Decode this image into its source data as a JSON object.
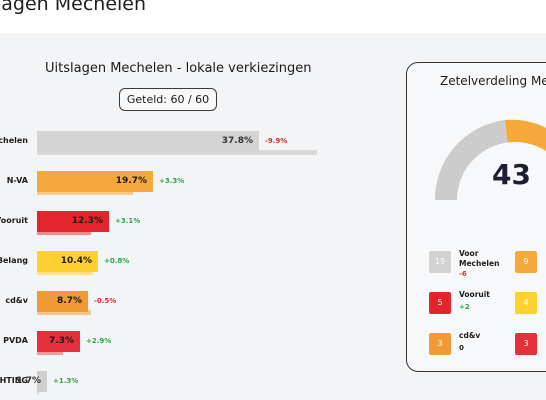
{
  "page_title": "lagen Mechelen",
  "chart": {
    "title": "Uitslagen Mechelen - lokale verkiezingen",
    "counted": "Geteld: 60 / 60"
  },
  "results": [
    {
      "party": "Mechelen",
      "pct": 37.8,
      "pct_label": "37.8%",
      "change": "-9.9%",
      "change_color": "#d0312d",
      "bar_color": "#d4d4d4",
      "prev_color": "#d9d9d9",
      "text_color": "#333333",
      "prev_pct": 47.7
    },
    {
      "party": "N-VA",
      "pct": 19.7,
      "pct_label": "19.7%",
      "change": "+3.3%",
      "change_color": "#2ea44f",
      "bar_color": "#f6a93b",
      "prev_color": "#f9c98a",
      "text_color": "#1c1c1c",
      "prev_pct": 16.4
    },
    {
      "party": "Vooruit",
      "pct": 12.3,
      "pct_label": "12.3%",
      "change": "+3.1%",
      "change_color": "#2ea44f",
      "bar_color": "#e4242b",
      "prev_color": "#f08a8e",
      "text_color": "#1c1c1c",
      "prev_pct": 9.2
    },
    {
      "party": "s Belang",
      "pct": 10.4,
      "pct_label": "10.4%",
      "change": "+0.8%",
      "change_color": "#2ea44f",
      "bar_color": "#ffd12e",
      "prev_color": "#ffe27f",
      "text_color": "#1c1c1c",
      "prev_pct": 9.6
    },
    {
      "party": "cd&v",
      "pct": 8.7,
      "pct_label": "8.7%",
      "change": "-0.5%",
      "change_color": "#d0312d",
      "bar_color": "#f09a36",
      "prev_color": "#f7c58d",
      "text_color": "#1c1c1c",
      "prev_pct": 9.2
    },
    {
      "party": "PVDA",
      "pct": 7.3,
      "pct_label": "7.3%",
      "change": "+2.9%",
      "change_color": "#2ea44f",
      "bar_color": "#e5303c",
      "prev_color": "#f29aa0",
      "text_color": "#1c1c1c",
      "prev_pct": 4.4
    },
    {
      "party": "ICHTING",
      "pct": 1.7,
      "pct_label": "1.7%",
      "change": "+1.3%",
      "change_color": "#2ea44f",
      "bar_color": "#cfcfcf",
      "prev_color": "#e0e0e0",
      "text_color": "#333333",
      "prev_pct": 0.4
    }
  ],
  "seats": {
    "title": "Zetelverdeling Mechelen",
    "total": "43",
    "arc_colors": [
      "#cccccc",
      "#f6a93b",
      "#e4242b"
    ],
    "parties": [
      {
        "seats": "19",
        "name_line1": "Voor",
        "name_line2": "Mechelen",
        "delta": "-6",
        "color": "#d2d2d2",
        "delta_color": "#d0312d"
      },
      {
        "seats": "9",
        "name_line1": "",
        "name_line2": "",
        "delta": "",
        "color": "#f6a93b",
        "delta_color": "#2ea44f"
      },
      {
        "seats": "5",
        "name_line1": "Vooruit",
        "name_line2": "",
        "delta": "+2",
        "color": "#e4242b",
        "delta_color": "#2ea44f"
      },
      {
        "seats": "4",
        "name_line1": "",
        "name_line2": "",
        "delta": "",
        "color": "#ffd12e",
        "delta_color": "#2ea44f"
      },
      {
        "seats": "3",
        "name_line1": "cd&v",
        "name_line2": "",
        "delta": "0",
        "color": "#f09a36",
        "delta_color": "#1c1c1c"
      },
      {
        "seats": "3",
        "name_line1": "",
        "name_line2": "",
        "delta": "",
        "color": "#e5303c",
        "delta_color": "#2ea44f"
      }
    ]
  }
}
